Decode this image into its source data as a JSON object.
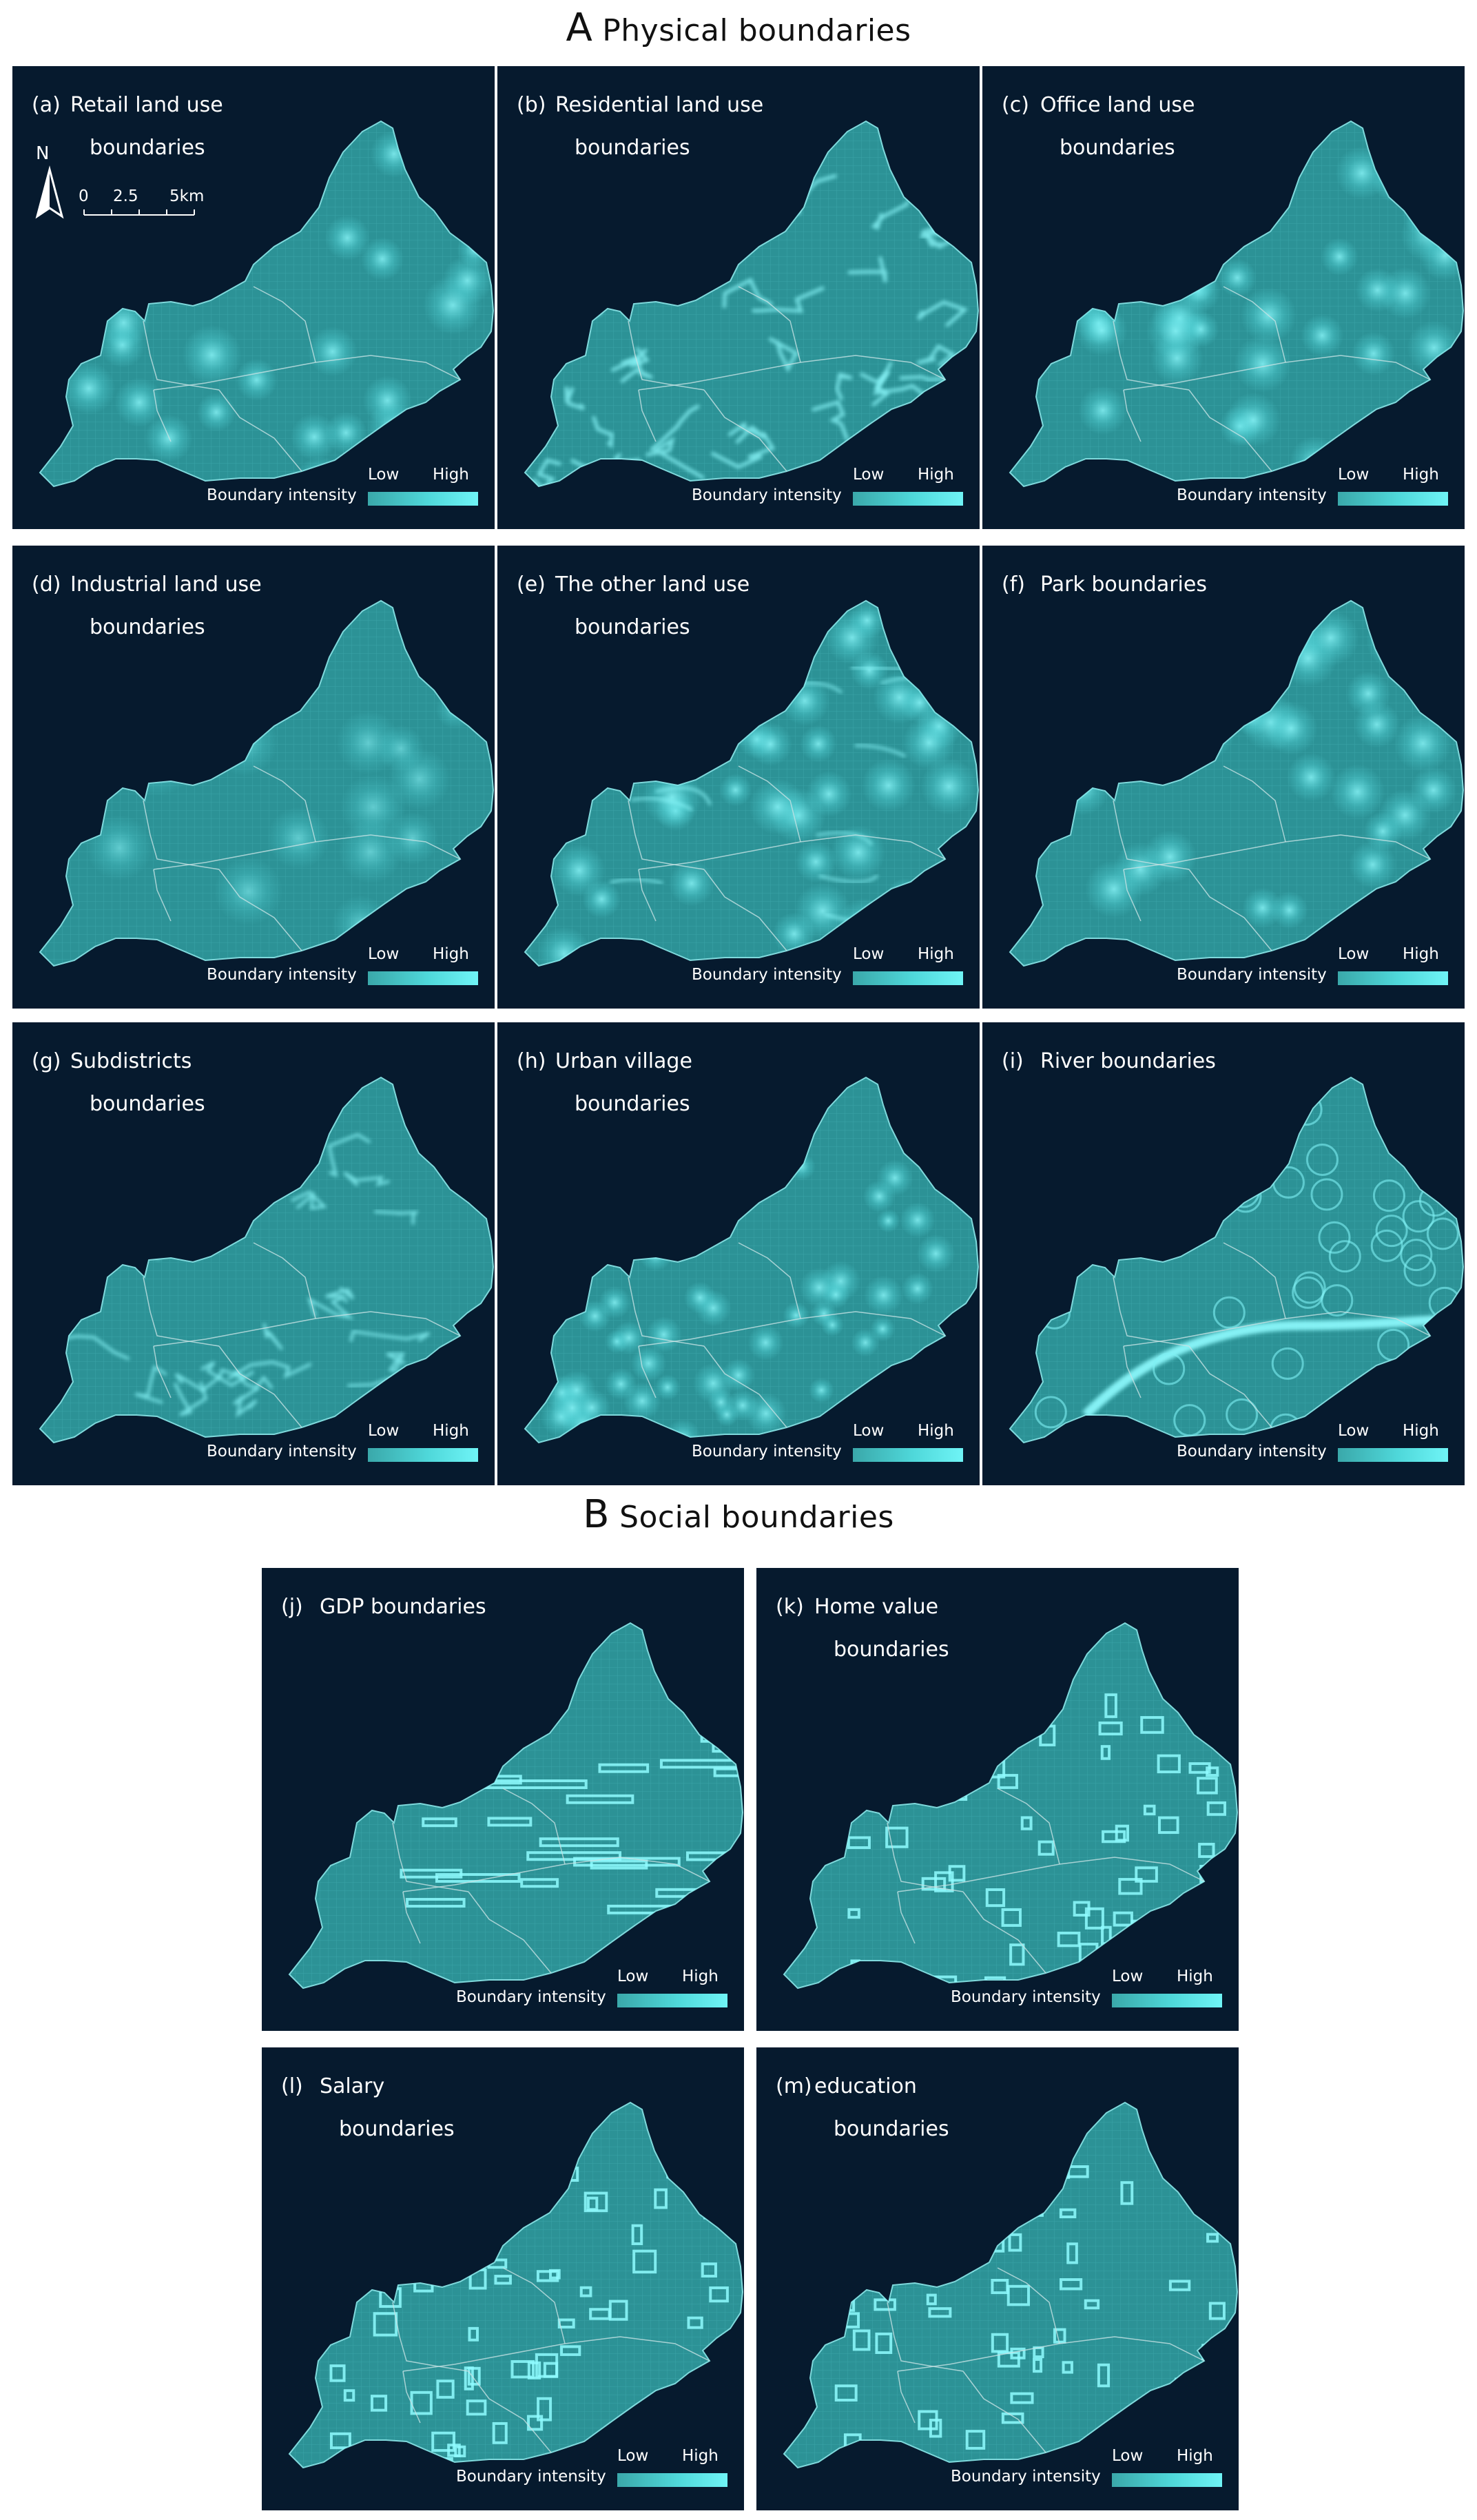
{
  "sections": [
    {
      "letter": "A",
      "title": "Physical boundaries"
    },
    {
      "letter": "B",
      "title": "Social boundaries"
    }
  ],
  "legend": {
    "title": "Boundary intensity",
    "low": "Low",
    "high": "High"
  },
  "north_arrow": {
    "label": "N"
  },
  "scale_bar": {
    "labels": [
      "0",
      "2.5",
      "5km"
    ]
  },
  "colors": {
    "background": "#061a2e",
    "land": "#2a8f94",
    "glow": "#6ff4f6",
    "district_lines": "#b8d8dc"
  },
  "panels": [
    {
      "tag": "(a)",
      "line1": "Retail land use",
      "line2": "boundaries",
      "pattern": "retail"
    },
    {
      "tag": "(b)",
      "line1": "Residential land use",
      "line2": "boundaries",
      "pattern": "residential"
    },
    {
      "tag": "(c)",
      "line1": "Office land use",
      "line2": "boundaries",
      "pattern": "office"
    },
    {
      "tag": "(d)",
      "line1": "Industrial land use",
      "line2": "boundaries",
      "pattern": "industrial"
    },
    {
      "tag": "(e)",
      "line1": "The other land use",
      "line2": "boundaries",
      "pattern": "other"
    },
    {
      "tag": "(f)",
      "line1": "Park boundaries",
      "line2": "",
      "pattern": "park"
    },
    {
      "tag": "(g)",
      "line1": "Subdistricts",
      "line2": "boundaries",
      "pattern": "subdistricts"
    },
    {
      "tag": "(h)",
      "line1": "Urban village",
      "line2": "boundaries",
      "pattern": "urban-village"
    },
    {
      "tag": "(i)",
      "line1": "River boundaries",
      "line2": "",
      "pattern": "river"
    },
    {
      "tag": "(j)",
      "line1": "GDP boundaries",
      "line2": "",
      "pattern": "gdp"
    },
    {
      "tag": "(k)",
      "line1": "Home value",
      "line2": "boundaries",
      "pattern": "home-value"
    },
    {
      "tag": "(l)",
      "line1": "Salary",
      "line2": "boundaries",
      "pattern": "salary"
    },
    {
      "tag": "(m)",
      "line1": "education",
      "line2": "boundaries",
      "pattern": "education"
    }
  ]
}
